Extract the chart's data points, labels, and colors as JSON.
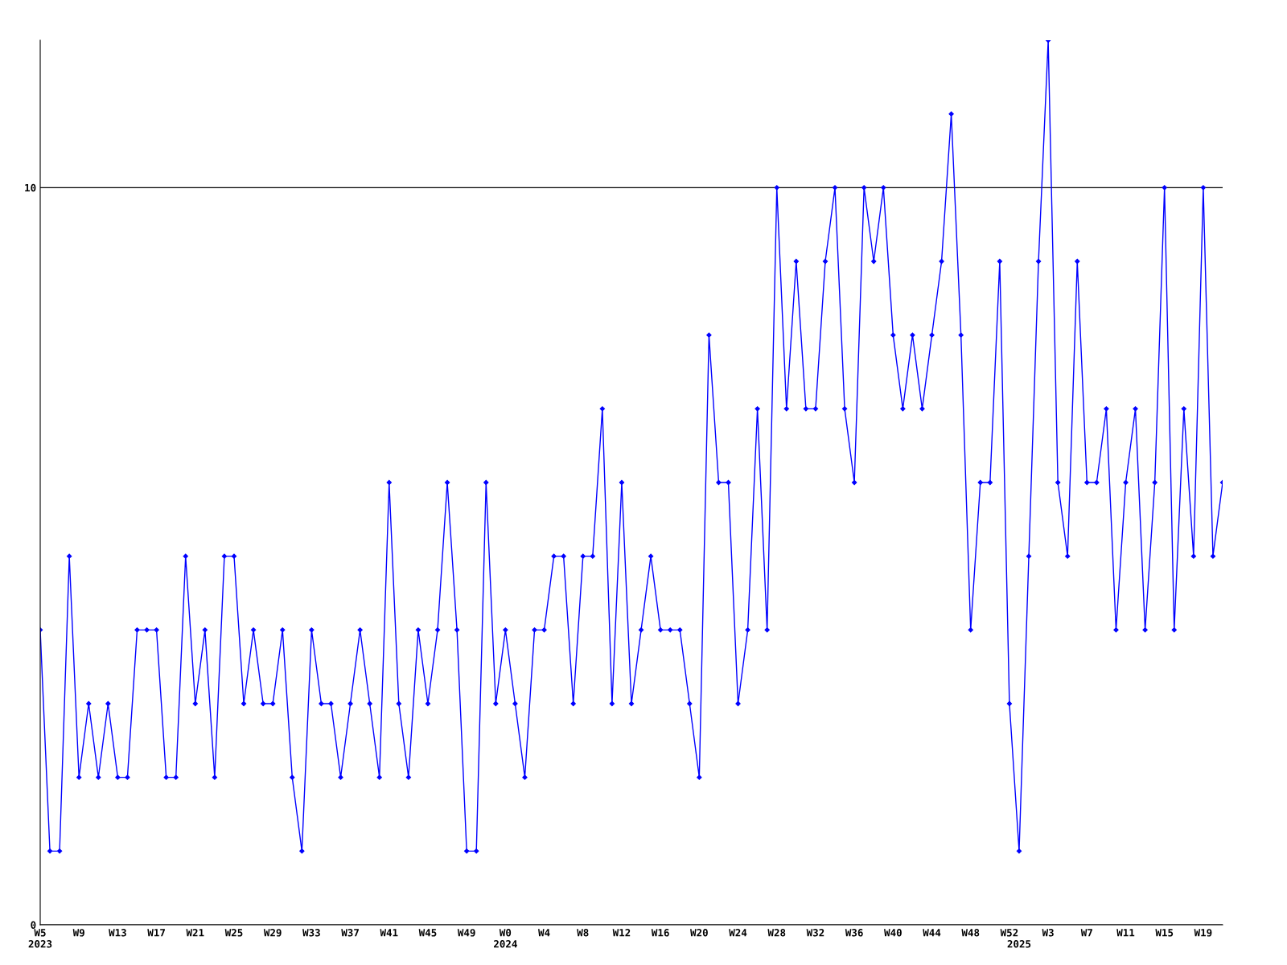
{
  "chart_data": {
    "type": "line",
    "categories": [
      "W5\n2023",
      null,
      null,
      null,
      "W9",
      null,
      null,
      null,
      "W13",
      null,
      null,
      null,
      "W17",
      null,
      null,
      null,
      "W21",
      null,
      null,
      null,
      "W25",
      null,
      null,
      null,
      "W29",
      null,
      null,
      null,
      "W33",
      null,
      null,
      null,
      "W37",
      null,
      null,
      null,
      "W41",
      null,
      null,
      null,
      "W45",
      null,
      null,
      null,
      "W49",
      null,
      null,
      null,
      "W0\n2024",
      null,
      null,
      null,
      "W4",
      null,
      null,
      null,
      "W8",
      null,
      null,
      null,
      "W12",
      null,
      null,
      null,
      "W16",
      null,
      null,
      null,
      "W20",
      null,
      null,
      null,
      "W24",
      null,
      null,
      null,
      "W28",
      null,
      null,
      null,
      "W32",
      null,
      null,
      null,
      "W36",
      null,
      null,
      null,
      "W40",
      null,
      null,
      null,
      "W44",
      null,
      null,
      null,
      "W48",
      null,
      null,
      null,
      "W52",
      "\n2025",
      null,
      null,
      "W3",
      null,
      null,
      null,
      "W7",
      null,
      null,
      null,
      "W11",
      null,
      null,
      null,
      "W15",
      null,
      null,
      null,
      "W19",
      null,
      null
    ],
    "series": [
      {
        "color": "#0000ff",
        "values": [
          4,
          1,
          1,
          5,
          2,
          3,
          2,
          3,
          2,
          2,
          4,
          4,
          4,
          2,
          2,
          5,
          3,
          4,
          2,
          5,
          5,
          3,
          4,
          3,
          3,
          4,
          2,
          1,
          4,
          3,
          3,
          2,
          3,
          4,
          3,
          2,
          6,
          3,
          2,
          4,
          3,
          4,
          6,
          4,
          1,
          1,
          6,
          3,
          4,
          3,
          2,
          4,
          4,
          5,
          5,
          3,
          5,
          5,
          7,
          3,
          6,
          3,
          4,
          5,
          4,
          4,
          4,
          3,
          2,
          8,
          6,
          6,
          3,
          4,
          7,
          4,
          10,
          7,
          9,
          7,
          7,
          9,
          10,
          7,
          6,
          10,
          9,
          10,
          8,
          7,
          8,
          7,
          8,
          9,
          11,
          8,
          4,
          6,
          6,
          9,
          3,
          1,
          5,
          9,
          12,
          6,
          5,
          9,
          6,
          6,
          7,
          4,
          6,
          7,
          4,
          6,
          10,
          4,
          7,
          5,
          10,
          5,
          6
        ]
      }
    ],
    "ylim": [
      0,
      12
    ],
    "yticks": [
      0,
      10
    ],
    "grid": "y",
    "marker": "diamond",
    "line_style": "solid"
  }
}
